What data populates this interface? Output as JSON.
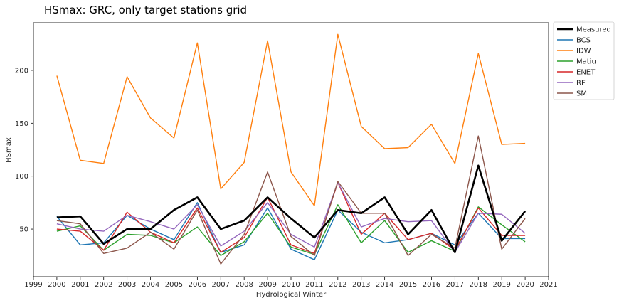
{
  "chart_data": {
    "type": "line",
    "title": "HSmax: GRC, only target stations grid",
    "xlabel": "Hydrological Winter",
    "ylabel": "HSmax",
    "xlim": [
      1999,
      2021
    ],
    "ylim": [
      5,
      245
    ],
    "xticks": [
      1999,
      2000,
      2001,
      2002,
      2003,
      2004,
      2005,
      2006,
      2007,
      2008,
      2009,
      2010,
      2011,
      2012,
      2013,
      2014,
      2015,
      2016,
      2017,
      2018,
      2019,
      2020,
      2021
    ],
    "yticks": [
      50,
      100,
      150,
      200
    ],
    "grid": false,
    "legend_position": "outside-top-right",
    "x": [
      2000,
      2001,
      2002,
      2003,
      2004,
      2005,
      2006,
      2007,
      2008,
      2009,
      2010,
      2011,
      2012,
      2013,
      2014,
      2015,
      2016,
      2017,
      2018,
      2019,
      2020
    ],
    "series": [
      {
        "name": "Measured",
        "color": "#000000",
        "width": 2.6,
        "values": [
          61,
          62,
          36,
          50,
          50,
          68,
          80,
          50,
          58,
          80,
          60,
          42,
          68,
          65,
          80,
          45,
          68,
          28,
          110,
          39,
          67
        ]
      },
      {
        "name": "BCS",
        "color": "#1f77b4",
        "width": 1.4,
        "values": [
          62,
          35,
          37,
          63,
          50,
          40,
          75,
          28,
          35,
          70,
          31,
          21,
          68,
          47,
          37,
          40,
          46,
          35,
          65,
          41,
          41
        ]
      },
      {
        "name": "IDW",
        "color": "#ff7f0e",
        "width": 1.4,
        "values": [
          195,
          115,
          112,
          194,
          155,
          136,
          226,
          88,
          113,
          228,
          104,
          72,
          234,
          147,
          126,
          127,
          149,
          112,
          216,
          130,
          131
        ]
      },
      {
        "name": "Matiu",
        "color": "#2ca02c",
        "width": 1.4,
        "values": [
          48,
          53,
          30,
          45,
          44,
          37,
          52,
          25,
          38,
          65,
          33,
          26,
          73,
          37,
          58,
          28,
          39,
          29,
          71,
          54,
          38
        ]
      },
      {
        "name": "ENET",
        "color": "#d62728",
        "width": 1.4,
        "values": [
          50,
          48,
          30,
          66,
          47,
          37,
          70,
          28,
          42,
          80,
          35,
          27,
          94,
          45,
          65,
          40,
          46,
          30,
          70,
          44,
          44
        ]
      },
      {
        "name": "RF",
        "color": "#9467bd",
        "width": 1.4,
        "values": [
          55,
          50,
          48,
          63,
          57,
          50,
          73,
          34,
          48,
          75,
          45,
          33,
          94,
          52,
          60,
          57,
          58,
          28,
          65,
          64,
          46
        ]
      },
      {
        "name": "SM",
        "color": "#8c564b",
        "width": 1.4,
        "values": [
          58,
          55,
          27,
          32,
          47,
          31,
          68,
          17,
          45,
          104,
          43,
          25,
          95,
          65,
          65,
          25,
          45,
          32,
          138,
          31,
          60
        ]
      }
    ]
  }
}
